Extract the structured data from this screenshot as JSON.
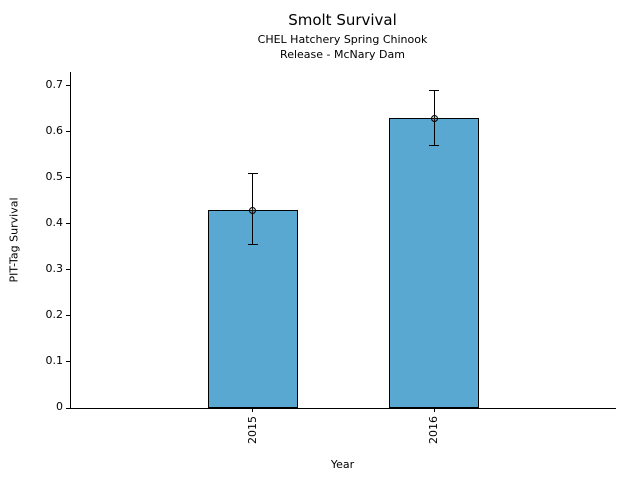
{
  "chart_data": {
    "type": "bar",
    "title": "Smolt Survival",
    "subtitle1": "CHEL Hatchery Spring Chinook",
    "subtitle2": "Release - McNary Dam",
    "xlabel": "Year",
    "ylabel": "PIT-Tag Survival",
    "categories": [
      "2015",
      "2016"
    ],
    "values": [
      0.43,
      0.63
    ],
    "error_low": [
      0.355,
      0.57
    ],
    "error_high": [
      0.51,
      0.69
    ],
    "yticks": [
      0,
      0.1,
      0.2,
      0.3,
      0.4,
      0.5,
      0.6,
      0.7
    ],
    "ytick_labels": [
      "0",
      "0.1",
      "0.2",
      "0.3",
      "0.4",
      "0.5",
      "0.6",
      "0.7"
    ],
    "ylim": [
      0,
      0.73
    ],
    "bar_color": "#59A8D2",
    "edge_color": "#000000",
    "legend": "none",
    "grid": false
  }
}
